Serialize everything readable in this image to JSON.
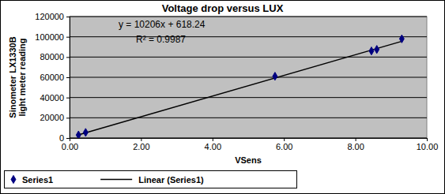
{
  "chart_data": {
    "type": "scatter",
    "title": "Voltage drop versus LUX",
    "x_label": "VSens",
    "y_label": "Sinometer LX1330B light meter reading",
    "series": [
      {
        "name": "Series1",
        "type": "scatter",
        "marker": "diamond",
        "color": "#000080",
        "x": [
          0.25,
          0.45,
          5.75,
          8.45,
          8.6,
          9.3
        ],
        "values": [
          3000,
          5500,
          61000,
          86000,
          87500,
          98000
        ]
      },
      {
        "name": "Linear (Series1)",
        "type": "line",
        "line_style": "solid",
        "color": "#000000",
        "x": [
          0.25,
          9.3
        ],
        "values": [
          3170,
          95540
        ]
      }
    ],
    "xlim": [
      0,
      10
    ],
    "xticks": [
      {
        "value": 0,
        "label": "0.00"
      },
      {
        "value": 2,
        "label": "2.00"
      },
      {
        "value": 4,
        "label": "4.00"
      },
      {
        "value": 6,
        "label": "6.00"
      },
      {
        "value": 8,
        "label": "8.00"
      },
      {
        "value": 10,
        "label": "10.00"
      }
    ],
    "ylim": [
      0,
      120000
    ],
    "yticks": [
      0,
      20000,
      40000,
      60000,
      80000,
      100000,
      120000
    ],
    "grid": true,
    "legend": "bottom",
    "annotations": [
      "y = 10206x + 618.24",
      "R² = 0.9987"
    ]
  }
}
